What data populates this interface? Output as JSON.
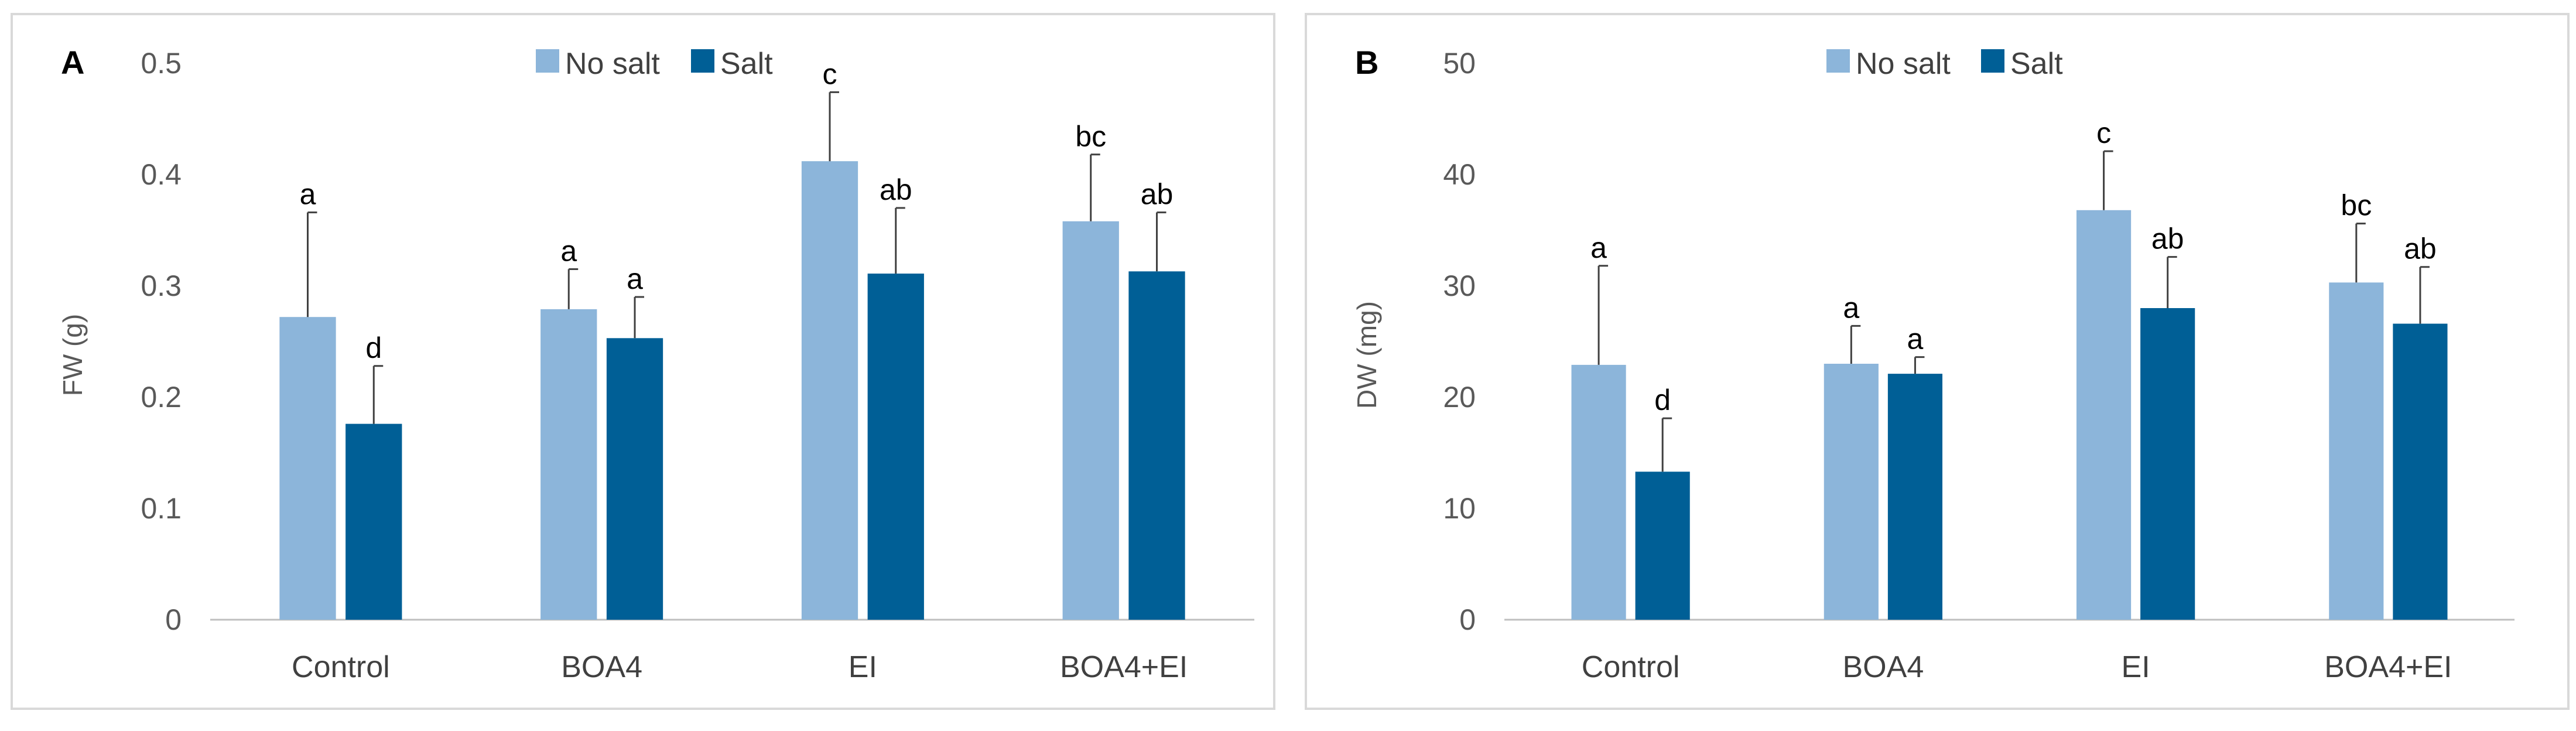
{
  "colors": {
    "no_salt": "#8cb5da",
    "salt": "#005f96",
    "axis": "#bfbfbf",
    "error": "#404040"
  },
  "chart_data": [
    {
      "type": "bar",
      "panel_label": "A",
      "ylabel": "FW (g)",
      "ylim": [
        0,
        0.5
      ],
      "yticks": [
        0,
        0.1,
        0.2,
        0.3,
        0.4,
        0.5
      ],
      "ytick_labels": [
        "0",
        "0.1",
        "0.2",
        "0.3",
        "0.4",
        "0.5"
      ],
      "categories": [
        "Control",
        "BOA4",
        "EI",
        "BOA4+EI"
      ],
      "legend": [
        "No salt",
        "Salt"
      ],
      "series": [
        {
          "name": "No salt",
          "values": [
            0.272,
            0.279,
            0.412,
            0.358
          ],
          "errors": [
            0.094,
            0.036,
            0.062,
            0.06
          ],
          "letters": [
            "a",
            "a",
            "c",
            "bc"
          ]
        },
        {
          "name": "Salt",
          "values": [
            0.176,
            0.253,
            0.311,
            0.313
          ],
          "errors": [
            0.052,
            0.037,
            0.059,
            0.053
          ],
          "letters": [
            "d",
            "a",
            "ab",
            "ab"
          ]
        }
      ]
    },
    {
      "type": "bar",
      "panel_label": "B",
      "ylabel": "DW (mg)",
      "ylim": [
        0,
        50
      ],
      "yticks": [
        0,
        10,
        20,
        30,
        40,
        50
      ],
      "ytick_labels": [
        "0",
        "10",
        "20",
        "30",
        "40",
        "50"
      ],
      "categories": [
        "Control",
        "BOA4",
        "EI",
        "BOA4+EI"
      ],
      "legend": [
        "No salt",
        "Salt"
      ],
      "series": [
        {
          "name": "No salt",
          "values": [
            22.9,
            23.0,
            36.8,
            30.3
          ],
          "errors": [
            8.9,
            3.4,
            5.3,
            5.3
          ],
          "letters": [
            "a",
            "a",
            "c",
            "bc"
          ]
        },
        {
          "name": "Salt",
          "values": [
            13.3,
            22.1,
            28.0,
            26.6
          ],
          "errors": [
            4.8,
            1.5,
            4.6,
            5.1
          ],
          "letters": [
            "d",
            "a",
            "ab",
            "ab"
          ]
        }
      ]
    }
  ]
}
